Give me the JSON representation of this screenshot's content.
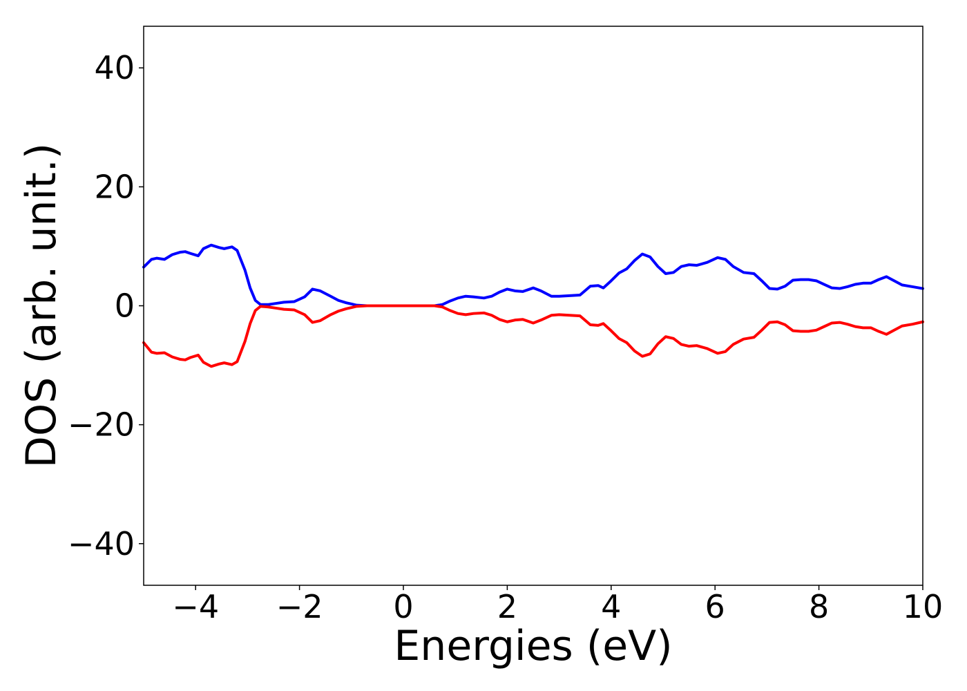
{
  "chart_data": {
    "type": "line",
    "xlabel": "Energies (eV)",
    "ylabel": "DOS (arb. unit.)",
    "xlim": [
      -5,
      10
    ],
    "ylim": [
      -47,
      47
    ],
    "grid": false,
    "legend": "none",
    "x_ticks": [
      -4,
      -2,
      0,
      2,
      4,
      6,
      8,
      10
    ],
    "x_tick_labels": [
      "−4",
      "−2",
      "0",
      "2",
      "4",
      "6",
      "8",
      "10"
    ],
    "y_ticks": [
      40,
      20,
      0,
      -20,
      -40
    ],
    "y_tick_labels": [
      "40",
      "20",
      "0",
      "−20",
      "−40"
    ],
    "series": [
      {
        "color": "#0000ff",
        "x": [
          -5.0,
          -4.85,
          -4.75,
          -4.6,
          -4.45,
          -4.3,
          -4.2,
          -4.1,
          -3.95,
          -3.85,
          -3.7,
          -3.55,
          -3.45,
          -3.3,
          -3.2,
          -3.05,
          -2.95,
          -2.85,
          -2.75,
          -2.6,
          -2.45,
          -2.3,
          -2.1,
          -1.9,
          -1.75,
          -1.6,
          -1.4,
          -1.25,
          -1.1,
          -0.9,
          -0.7,
          -0.5,
          -0.2,
          0.0,
          0.3,
          0.6,
          0.75,
          0.9,
          1.05,
          1.2,
          1.35,
          1.55,
          1.7,
          1.85,
          2.0,
          2.15,
          2.3,
          2.5,
          2.65,
          2.85,
          3.0,
          3.2,
          3.4,
          3.6,
          3.75,
          3.85,
          4.0,
          4.15,
          4.3,
          4.45,
          4.6,
          4.75,
          4.9,
          5.05,
          5.2,
          5.35,
          5.5,
          5.65,
          5.85,
          6.05,
          6.2,
          6.35,
          6.55,
          6.75,
          6.9,
          7.05,
          7.2,
          7.35,
          7.5,
          7.65,
          7.8,
          7.95,
          8.1,
          8.25,
          8.4,
          8.55,
          8.7,
          8.85,
          9.0,
          9.15,
          9.3,
          9.45,
          9.6,
          9.8,
          10.0
        ],
        "y": [
          6.5,
          7.8,
          8.0,
          7.8,
          8.6,
          9.0,
          9.1,
          8.8,
          8.4,
          9.6,
          10.2,
          9.8,
          9.6,
          9.9,
          9.3,
          6.0,
          3.0,
          0.9,
          0.2,
          0.2,
          0.4,
          0.6,
          0.7,
          1.5,
          2.8,
          2.5,
          1.6,
          0.9,
          0.5,
          0.1,
          0.0,
          0.0,
          0.0,
          0.0,
          0.0,
          0.0,
          0.2,
          0.8,
          1.3,
          1.6,
          1.5,
          1.3,
          1.6,
          2.3,
          2.8,
          2.5,
          2.4,
          3.0,
          2.5,
          1.6,
          1.6,
          1.7,
          1.8,
          3.3,
          3.4,
          3.0,
          4.2,
          5.5,
          6.2,
          7.6,
          8.7,
          8.2,
          6.6,
          5.4,
          5.6,
          6.6,
          6.9,
          6.8,
          7.3,
          8.1,
          7.8,
          6.6,
          5.6,
          5.4,
          4.2,
          2.9,
          2.8,
          3.3,
          4.3,
          4.4,
          4.4,
          4.2,
          3.6,
          3.0,
          2.9,
          3.2,
          3.6,
          3.8,
          3.8,
          4.4,
          4.9,
          4.2,
          3.5,
          3.2,
          2.9
        ]
      },
      {
        "color": "#ff0000",
        "x": [
          -5.0,
          -4.85,
          -4.75,
          -4.6,
          -4.45,
          -4.3,
          -4.2,
          -4.1,
          -3.95,
          -3.85,
          -3.7,
          -3.55,
          -3.45,
          -3.3,
          -3.2,
          -3.05,
          -2.95,
          -2.85,
          -2.75,
          -2.6,
          -2.45,
          -2.3,
          -2.1,
          -1.9,
          -1.75,
          -1.6,
          -1.4,
          -1.25,
          -1.1,
          -0.9,
          -0.7,
          -0.5,
          -0.2,
          0.0,
          0.3,
          0.6,
          0.75,
          0.9,
          1.05,
          1.2,
          1.35,
          1.55,
          1.7,
          1.85,
          2.0,
          2.15,
          2.3,
          2.5,
          2.65,
          2.85,
          3.0,
          3.2,
          3.4,
          3.6,
          3.75,
          3.85,
          4.0,
          4.15,
          4.3,
          4.45,
          4.6,
          4.75,
          4.9,
          5.05,
          5.2,
          5.35,
          5.5,
          5.65,
          5.85,
          6.05,
          6.2,
          6.35,
          6.55,
          6.75,
          6.9,
          7.05,
          7.2,
          7.35,
          7.5,
          7.65,
          7.8,
          7.95,
          8.1,
          8.25,
          8.4,
          8.55,
          8.7,
          8.85,
          9.0,
          9.15,
          9.3,
          9.45,
          9.6,
          9.8,
          10.0
        ],
        "y": [
          -6.2,
          -7.8,
          -8.0,
          -7.9,
          -8.6,
          -9.0,
          -9.1,
          -8.7,
          -8.3,
          -9.5,
          -10.2,
          -9.8,
          -9.6,
          -9.9,
          -9.4,
          -6.0,
          -3.0,
          -0.8,
          -0.1,
          -0.2,
          -0.4,
          -0.6,
          -0.7,
          -1.5,
          -2.8,
          -2.5,
          -1.5,
          -0.9,
          -0.5,
          -0.1,
          0.0,
          0.0,
          0.0,
          0.0,
          0.0,
          0.0,
          -0.2,
          -0.8,
          -1.3,
          -1.5,
          -1.3,
          -1.2,
          -1.6,
          -2.3,
          -2.7,
          -2.4,
          -2.3,
          -2.9,
          -2.4,
          -1.6,
          -1.5,
          -1.6,
          -1.7,
          -3.2,
          -3.3,
          -3.0,
          -4.2,
          -5.5,
          -6.2,
          -7.6,
          -8.5,
          -8.1,
          -6.4,
          -5.2,
          -5.5,
          -6.5,
          -6.8,
          -6.7,
          -7.2,
          -8.0,
          -7.7,
          -6.5,
          -5.6,
          -5.3,
          -4.1,
          -2.8,
          -2.7,
          -3.2,
          -4.2,
          -4.3,
          -4.3,
          -4.1,
          -3.5,
          -2.9,
          -2.8,
          -3.1,
          -3.5,
          -3.7,
          -3.7,
          -4.3,
          -4.8,
          -4.1,
          -3.4,
          -3.1,
          -2.7
        ]
      }
    ]
  }
}
